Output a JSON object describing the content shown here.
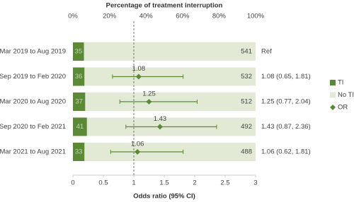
{
  "chart_data": {
    "type": "forest",
    "categories": [
      "Mar 2019 to Aug 2019",
      "Sep 2019 to Feb 2020",
      "Mar 2020 to Aug 2020",
      "Sep 2020 to Feb 2021",
      "Mar 2021 to Aug 2021"
    ],
    "series": [
      {
        "name": "TI",
        "color": "#5b8a36",
        "values": [
          35,
          36,
          37,
          41,
          33
        ]
      },
      {
        "name": "No TI",
        "color": "#e2ead6",
        "values": [
          541,
          532,
          512,
          492,
          488
        ]
      },
      {
        "name": "OR",
        "color": "#5b8a36",
        "values": [
          null,
          1.08,
          1.25,
          1.43,
          1.06
        ],
        "ci_low": [
          null,
          0.65,
          0.77,
          0.87,
          0.62
        ],
        "ci_high": [
          null,
          1.81,
          2.04,
          2.36,
          1.81
        ]
      }
    ],
    "stacked_percent": true,
    "x2label": "Percentage of treatment interruption",
    "x2lim": [
      0,
      100
    ],
    "x2ticks": [
      {
        "value": 0,
        "label": "0%"
      },
      {
        "value": 20,
        "label": "20%"
      },
      {
        "value": 40,
        "label": "40%"
      },
      {
        "value": 60,
        "label": "60%"
      },
      {
        "value": 80,
        "label": "80%"
      },
      {
        "value": 100,
        "label": "100%"
      }
    ],
    "xlabel": "Odds ratio (95% CI)",
    "xlim": [
      0,
      3
    ],
    "xticks": [
      0,
      0.5,
      1,
      1.5,
      2,
      2.5,
      3
    ],
    "reference_line": 1,
    "result_labels": [
      "Ref",
      "1.08 (0.65, 1.81)",
      "1.25 (0.77, 2.04)",
      "1.43 (0.87, 2.36)",
      "1.06 (0.62, 1.81)"
    ],
    "legend": "right"
  }
}
